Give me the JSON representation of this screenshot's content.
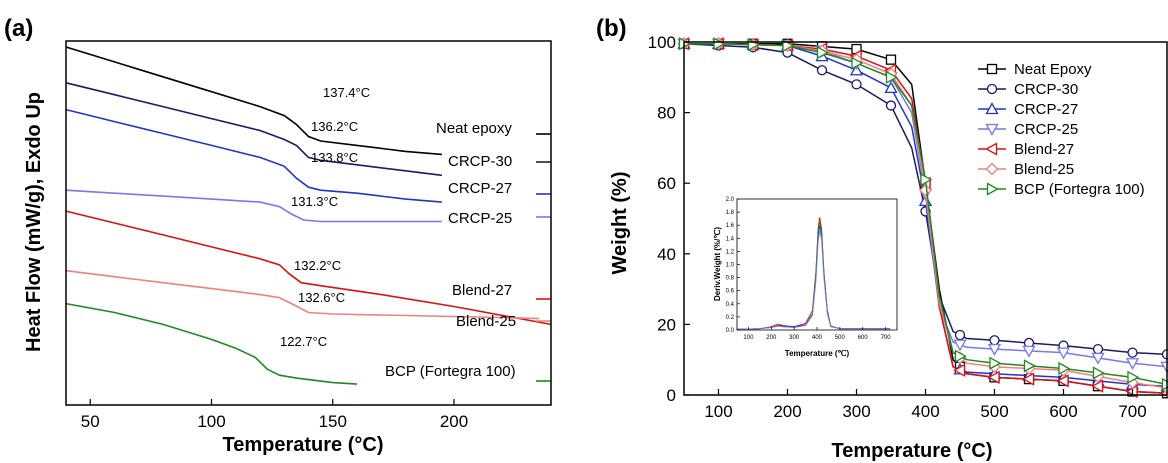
{
  "chart_data": [
    {
      "panel_label": "(a)",
      "type": "line",
      "xlabel": "Temperature (°C)",
      "ylabel": "Heat Flow (mW/g), Exdo Up",
      "xlim": [
        40,
        240
      ],
      "xticks": [
        "50",
        "100",
        "150",
        "200"
      ],
      "series": [
        {
          "name": "Neat epoxy",
          "color": "#000000",
          "tg_label": "137.4°C",
          "tg_x": 137.4,
          "x": [
            40,
            60,
            80,
            100,
            120,
            130,
            135,
            140,
            145,
            160,
            180,
            195
          ],
          "y": [
            100,
            95,
            90,
            85,
            80,
            77,
            74,
            70,
            68.5,
            67,
            65,
            64
          ]
        },
        {
          "name": "CRCP-30",
          "color": "#1a1a66",
          "tg_label": "136.2°C",
          "tg_x": 136.2,
          "x": [
            40,
            60,
            80,
            100,
            120,
            130,
            135,
            140,
            145,
            160,
            180,
            195
          ],
          "y": [
            88,
            84,
            80,
            76,
            72,
            69,
            67,
            63,
            62,
            60.5,
            58.5,
            57
          ]
        },
        {
          "name": "CRCP-27",
          "color": "#2233cc",
          "tg_label": "133.8°C",
          "tg_x": 133.8,
          "x": [
            40,
            60,
            80,
            100,
            120,
            130,
            135,
            140,
            145,
            160,
            180,
            195
          ],
          "y": [
            79,
            75,
            71,
            67,
            63,
            60,
            56,
            53,
            52,
            51,
            49,
            48
          ]
        },
        {
          "name": "CRCP-25",
          "color": "#7777ee",
          "tg_label": "131.3°C",
          "tg_x": 131.3,
          "x": [
            40,
            60,
            80,
            100,
            120,
            128,
            133,
            138,
            145,
            160,
            180,
            195
          ],
          "y": [
            52,
            51,
            50,
            49,
            48,
            46.5,
            44,
            42,
            41.5,
            41.5,
            41.5,
            41.5
          ]
        },
        {
          "name": "Blend-27",
          "color": "#dd1111",
          "tg_label": "132.2°C",
          "tg_x": 132.2,
          "x": [
            40,
            60,
            80,
            100,
            120,
            128,
            132,
            137,
            145,
            170,
            200,
            240
          ],
          "y": [
            45,
            41,
            37,
            33,
            29,
            27,
            24,
            21,
            20,
            17,
            13,
            7
          ]
        },
        {
          "name": "Blend-25",
          "color": "#f08080",
          "tg_label": "132.6°C",
          "tg_x": 132.6,
          "x": [
            40,
            60,
            80,
            100,
            120,
            128,
            133,
            140,
            150,
            180,
            210,
            235
          ],
          "y": [
            25,
            23,
            21,
            19,
            17,
            16,
            14,
            11,
            10.5,
            10,
            9.5,
            9
          ]
        },
        {
          "name": "BCP (Fortegra 100)",
          "color": "#228822",
          "tg_label": "122.7°C",
          "tg_x": 122.7,
          "x": [
            40,
            60,
            80,
            100,
            110,
            118,
            123,
            128,
            135,
            150,
            160
          ],
          "y": [
            14,
            11,
            7,
            2,
            -1,
            -4,
            -8,
            -10,
            -11,
            -12.5,
            -13
          ]
        }
      ]
    },
    {
      "panel_label": "(b)",
      "type": "line",
      "xlabel": "Temperature (°C)",
      "ylabel": "Weight (%)",
      "xlim": [
        50,
        750
      ],
      "ylim": [
        0,
        100
      ],
      "xticks": [
        "100",
        "200",
        "300",
        "400",
        "500",
        "600",
        "700"
      ],
      "yticks": [
        "0",
        "20",
        "40",
        "60",
        "80",
        "100"
      ],
      "legend_position": "top-right",
      "series": [
        {
          "name": "Neat Epoxy",
          "color": "#000000",
          "marker": "square",
          "x": [
            50,
            100,
            200,
            300,
            350,
            380,
            400,
            420,
            440,
            460,
            500,
            600,
            700,
            750
          ],
          "y": [
            99.5,
            99.5,
            99.5,
            98,
            95,
            88,
            60,
            30,
            10,
            6,
            5,
            4,
            1,
            0.5
          ]
        },
        {
          "name": "CRCP-30",
          "color": "#1a1a66",
          "marker": "circle",
          "x": [
            50,
            100,
            150,
            200,
            250,
            300,
            350,
            380,
            400,
            420,
            440,
            460,
            500,
            600,
            700,
            750
          ],
          "y": [
            99.5,
            99,
            98.5,
            97,
            92,
            88,
            82,
            70,
            52,
            28,
            18,
            16,
            15.5,
            14,
            12,
            11.5
          ]
        },
        {
          "name": "CRCP-27",
          "color": "#2233cc",
          "marker": "triangle-up",
          "x": [
            50,
            100,
            200,
            250,
            300,
            350,
            380,
            400,
            420,
            440,
            460,
            500,
            600,
            700,
            750
          ],
          "y": [
            99.5,
            99.5,
            99,
            96,
            92,
            87,
            76,
            55,
            25,
            8,
            6.5,
            6,
            5,
            3,
            2.5
          ]
        },
        {
          "name": "CRCP-25",
          "color": "#7777ee",
          "marker": "triangle-down",
          "x": [
            50,
            100,
            200,
            250,
            300,
            350,
            380,
            400,
            420,
            440,
            460,
            500,
            600,
            700,
            750
          ],
          "y": [
            99.5,
            99.5,
            99,
            97.5,
            94,
            90,
            80,
            57,
            25,
            15,
            13.5,
            13,
            12,
            9,
            8
          ]
        },
        {
          "name": "Blend-27",
          "color": "#dd1111",
          "marker": "triangle-left",
          "x": [
            50,
            100,
            200,
            250,
            300,
            350,
            380,
            400,
            420,
            440,
            460,
            500,
            600,
            700,
            750
          ],
          "y": [
            99.5,
            99.5,
            99,
            98,
            96,
            92,
            84,
            60,
            25,
            8,
            6,
            5,
            4,
            1,
            0.5
          ]
        },
        {
          "name": "Blend-25",
          "color": "#f08080",
          "marker": "diamond",
          "x": [
            50,
            100,
            200,
            250,
            300,
            350,
            380,
            400,
            420,
            440,
            460,
            500,
            600,
            700,
            750
          ],
          "y": [
            99.5,
            99.5,
            99,
            97.5,
            95,
            91,
            82,
            58,
            26,
            12,
            9,
            8,
            7,
            3.5,
            2
          ]
        },
        {
          "name": "BCP (Fortegra 100)",
          "color": "#228822",
          "marker": "triangle-right",
          "x": [
            50,
            100,
            200,
            250,
            300,
            350,
            380,
            400,
            420,
            440,
            460,
            500,
            600,
            700,
            750
          ],
          "y": [
            99.5,
            99.5,
            99,
            97,
            94,
            90,
            82,
            61,
            28,
            12,
            10,
            9,
            7.5,
            5,
            3
          ]
        }
      ],
      "inset": {
        "type": "line",
        "xlabel": "Temperature (℃)",
        "ylabel": "Deriv.Weight (%/℃)",
        "xlim": [
          50,
          750
        ],
        "ylim": [
          0,
          2.0
        ],
        "xticks": [
          "100",
          "200",
          "300",
          "400",
          "500",
          "600",
          "700"
        ],
        "yticks": [
          "0.0",
          "0.2",
          "0.4",
          "0.6",
          "0.8",
          "1.0",
          "1.2",
          "1.4",
          "1.6",
          "1.8",
          "2.0"
        ],
        "x": [
          50,
          150,
          200,
          230,
          250,
          300,
          350,
          380,
          395,
          405,
          412,
          420,
          430,
          445,
          460,
          500,
          600,
          720
        ],
        "series": [
          {
            "color": "#dd1111",
            "y": [
              0.01,
              0.02,
              0.05,
              0.09,
              0.07,
              0.05,
              0.1,
              0.3,
              0.9,
              1.55,
              1.72,
              1.55,
              0.9,
              0.3,
              0.06,
              0.02,
              0.02,
              0.02
            ]
          },
          {
            "color": "#2233cc",
            "y": [
              0.01,
              0.02,
              0.04,
              0.07,
              0.06,
              0.05,
              0.08,
              0.25,
              0.8,
              1.42,
              1.6,
              1.45,
              0.85,
              0.3,
              0.06,
              0.02,
              0.02,
              0.02
            ]
          },
          {
            "color": "#228822",
            "y": [
              0.01,
              0.02,
              0.04,
              0.06,
              0.05,
              0.04,
              0.07,
              0.25,
              0.85,
              1.5,
              1.66,
              1.5,
              0.88,
              0.28,
              0.06,
              0.02,
              0.02,
              0.02
            ]
          },
          {
            "color": "#7777ee",
            "y": [
              0.01,
              0.02,
              0.04,
              0.06,
              0.05,
              0.04,
              0.07,
              0.22,
              0.75,
              1.35,
              1.52,
              1.38,
              0.8,
              0.25,
              0.05,
              0.02,
              0.02,
              0.02
            ]
          }
        ]
      }
    }
  ]
}
